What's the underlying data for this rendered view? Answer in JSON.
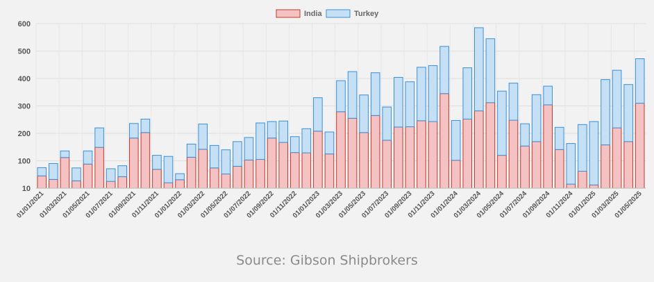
{
  "chart_data": {
    "type": "bar",
    "stacked": true,
    "categories": [
      "01/01/2021",
      "01/02/2021",
      "01/03/2021",
      "01/04/2021",
      "01/05/2021",
      "01/06/2021",
      "01/07/2021",
      "01/08/2021",
      "01/09/2021",
      "01/10/2021",
      "01/11/2021",
      "01/12/2021",
      "01/01/2022",
      "01/02/2022",
      "01/03/2022",
      "01/04/2022",
      "01/05/2022",
      "01/06/2022",
      "01/07/2022",
      "01/08/2022",
      "01/09/2022",
      "01/10/2022",
      "01/11/2022",
      "01/12/2022",
      "01/01/2023",
      "01/02/2023",
      "01/03/2023",
      "01/04/2023",
      "01/05/2023",
      "01/06/2023",
      "01/07/2023",
      "01/08/2023",
      "01/09/2023",
      "01/10/2023",
      "01/11/2023",
      "01/12/2023",
      "01/01/2024",
      "01/02/2024",
      "01/03/2024",
      "01/04/2024",
      "01/05/2024",
      "01/06/2024",
      "01/07/2024",
      "01/08/2024",
      "01/09/2024",
      "01/10/2024",
      "01/11/2024",
      "01/12/2024",
      "01/01/2025",
      "01/02/2025",
      "01/03/2025",
      "01/04/2025",
      "01/05/2025"
    ],
    "x_tick_labels": [
      "01/01/2021",
      "01/03/2021",
      "01/05/2021",
      "01/07/2021",
      "01/09/2021",
      "01/11/2021",
      "01/01/2022",
      "01/03/2022",
      "01/05/2022",
      "01/07/2022",
      "01/09/2022",
      "01/11/2022",
      "01/01/2023",
      "01/03/2023",
      "01/05/2023",
      "01/07/2023",
      "01/09/2023",
      "01/11/2023",
      "01/01/2024",
      "01/03/2024",
      "01/05/2024",
      "01/07/2024",
      "01/09/2024",
      "01/11/2024",
      "01/01/2025",
      "01/03/2025",
      "01/05/2025"
    ],
    "series": [
      {
        "name": "India",
        "color": "#f4c2c2",
        "border": "#c0392b",
        "values": [
          45,
          32,
          112,
          27,
          88,
          149,
          25,
          42,
          183,
          203,
          69,
          20,
          31,
          113,
          142,
          74,
          52,
          80,
          103,
          105,
          183,
          167,
          130,
          129,
          208,
          125,
          279,
          255,
          203,
          265,
          175,
          223,
          224,
          246,
          243,
          345,
          102,
          252,
          282,
          312,
          120,
          248,
          154,
          170,
          304,
          141,
          15,
          62,
          12,
          158,
          220,
          170,
          310
        ]
      },
      {
        "name": "Turkey",
        "color": "#c5e0f5",
        "border": "#3a8fd6",
        "values": [
          30,
          58,
          24,
          47,
          48,
          71,
          46,
          40,
          53,
          49,
          51,
          96,
          22,
          48,
          92,
          82,
          88,
          90,
          82,
          133,
          60,
          78,
          58,
          88,
          122,
          80,
          113,
          170,
          137,
          156,
          121,
          181,
          164,
          195,
          204,
          172,
          145,
          187,
          303,
          233,
          234,
          135,
          81,
          171,
          68,
          81,
          148,
          170,
          231,
          238,
          210,
          208,
          162
        ]
      }
    ],
    "y_ticks": [
      10,
      100,
      200,
      300,
      400,
      500,
      600
    ],
    "ylim": [
      0,
      600
    ],
    "grid": true,
    "legend_position": "top-center",
    "title": "",
    "xlabel": "",
    "ylabel": ""
  },
  "source_text": "Source: Gibson Shipbrokers"
}
